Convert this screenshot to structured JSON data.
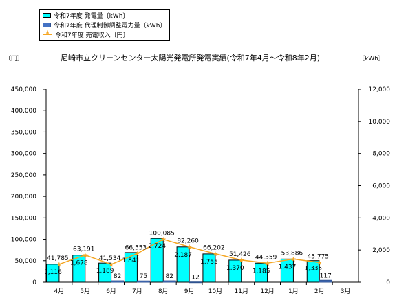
{
  "chart_data": {
    "type": "bar",
    "title": "尼崎市立クリーンセンター太陽光発電所発電実績(令和7年4月～令和8年2月)",
    "y_left_label": "〔円〕",
    "y_right_label": "〔kWh〕",
    "legend_position": "top-left",
    "categories": [
      "4月",
      "5月",
      "6月",
      "7月",
      "8月",
      "9月",
      "10月",
      "11月",
      "12月",
      "1月",
      "2月",
      "3月"
    ],
    "y_left_lim": [
      0,
      450000
    ],
    "y_left_ticks": [
      "0",
      "50,000",
      "100,000",
      "150,000",
      "200,000",
      "250,000",
      "300,000",
      "350,000",
      "400,000",
      "450,000"
    ],
    "y_right_lim": [
      0,
      12000
    ],
    "y_right_ticks": [
      "0",
      "2,000",
      "4,000",
      "6,000",
      "8,000",
      "10,000",
      "12,000"
    ],
    "series": [
      {
        "name": "令和7年度 発電量〔kWh〕",
        "axis": "right",
        "kind": "bar",
        "color": "#00FFFF",
        "values": [
          1116,
          1678,
          1189,
          1841,
          2724,
          2187,
          1755,
          1370,
          1185,
          1437,
          1335,
          null
        ],
        "labels": [
          "1,116",
          "1,678",
          "1,189",
          "1,841",
          "2,724",
          "2,187",
          "1,755",
          "1,370",
          "1,185",
          "1,437",
          "1,335",
          ""
        ]
      },
      {
        "name": "令和7年度 代理制御調整電力量〔kWh〕",
        "axis": "right",
        "kind": "bar",
        "color": "#4472C4",
        "values": [
          0,
          0,
          82,
          75,
          82,
          12,
          0,
          0,
          0,
          0,
          117,
          null
        ],
        "labels": [
          "",
          "",
          "82",
          "75",
          "82",
          "12",
          "",
          "",
          "",
          "",
          "117",
          ""
        ]
      },
      {
        "name": "令和7年度 売電収入〔円〕",
        "axis": "left",
        "kind": "line",
        "color": "#F5A623",
        "values": [
          41785,
          63191,
          41534,
          66553,
          100085,
          82260,
          66202,
          51426,
          44359,
          53886,
          45775,
          null
        ],
        "labels": [
          "41,785",
          "63,191",
          "41,534",
          "66,553",
          "100,085",
          "82,260",
          "66,202",
          "51,426",
          "44,359",
          "53,886",
          "45,775",
          ""
        ]
      }
    ]
  }
}
